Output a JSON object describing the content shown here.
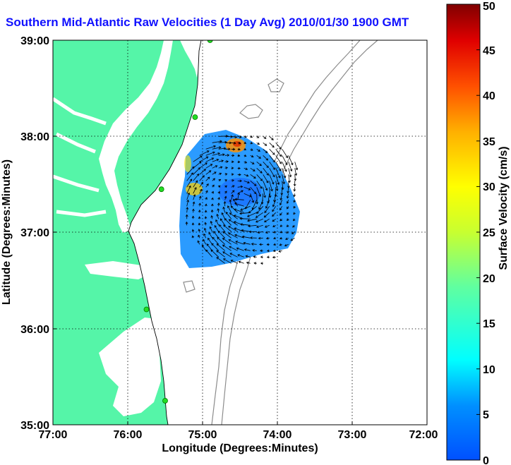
{
  "title": "Southern Mid-Atlantic Raw Velocities (1 Day Avg) 2010/01/30 1900 GMT",
  "axes": {
    "xlabel": "Longitude (Degrees:Minutes)",
    "ylabel": "Latitude (Degrees:Minutes)",
    "x_ticks": [
      "77:00",
      "76:00",
      "75:00",
      "74:00",
      "73:00",
      "72:00"
    ],
    "y_ticks": [
      "39:00",
      "38:00",
      "37:00",
      "36:00",
      "35:00"
    ]
  },
  "colorbar": {
    "label": "Surface Velocity (cm/s)",
    "ticks": [
      "0",
      "5",
      "10",
      "15",
      "20",
      "25",
      "30",
      "35",
      "40",
      "45",
      "50"
    ],
    "min": 0,
    "max": 50
  },
  "chart_data": {
    "type": "heatmap",
    "title": "Southern Mid-Atlantic Raw Velocities (1 Day Avg) 2010/01/30 1900 GMT",
    "xlabel": "Longitude (Degrees:Minutes)",
    "ylabel": "Latitude (Degrees:Minutes)",
    "xlim": [
      -77,
      -72
    ],
    "ylim": [
      35,
      39
    ],
    "grid": true,
    "colormap": "jet",
    "color_range": [
      0,
      50
    ],
    "land_color": "#55f5a8",
    "velocity_field": {
      "lon_range": [
        -75.55,
        -73.7
      ],
      "lat_range": [
        36.25,
        38.0
      ],
      "typical_speed_cm_s": 9,
      "max_speed_cm_s": 35
    },
    "station_markers": [
      {
        "lon": -74.9,
        "lat": 39.0
      },
      {
        "lon": -75.1,
        "lat": 38.2
      },
      {
        "lon": -75.55,
        "lat": 37.45
      },
      {
        "lon": -75.75,
        "lat": 36.2
      },
      {
        "lon": -75.5,
        "lat": 35.25
      }
    ]
  }
}
